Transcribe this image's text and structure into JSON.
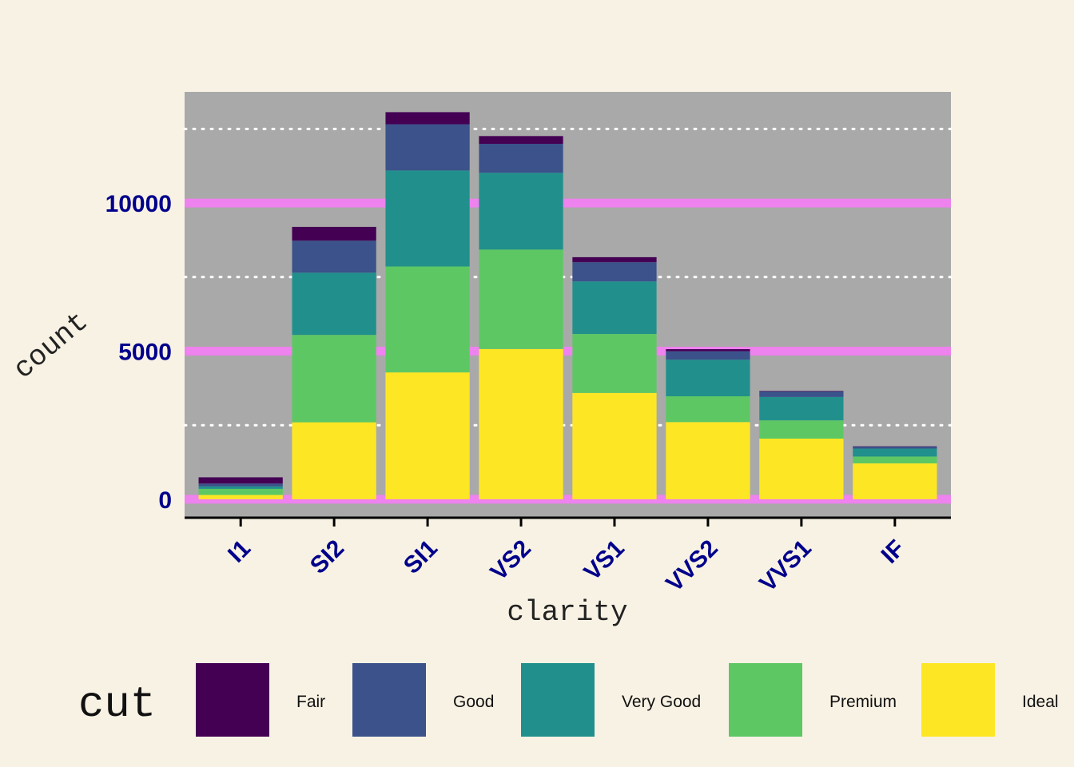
{
  "chart_data": {
    "type": "bar",
    "stacked": true,
    "xlabel": "clarity",
    "ylabel": "count",
    "categories": [
      "I1",
      "SI2",
      "SI1",
      "VS2",
      "VS1",
      "VVS2",
      "VVS1",
      "IF"
    ],
    "ylim": [
      -650,
      13750
    ],
    "yticks": [
      0,
      5000,
      10000
    ],
    "minor_gridlines": [
      2500,
      7500,
      12500
    ],
    "legend": {
      "title": "cut",
      "position": "bottom"
    },
    "series": [
      {
        "name": "Fair",
        "color": "#440154",
        "values": [
          210,
          466,
          408,
          261,
          170,
          69,
          17,
          9
        ]
      },
      {
        "name": "Good",
        "color": "#3b528b",
        "values": [
          96,
          1081,
          1560,
          978,
          648,
          286,
          186,
          71
        ]
      },
      {
        "name": "Very Good",
        "color": "#21908c",
        "values": [
          84,
          2100,
          3240,
          2591,
          1775,
          1235,
          789,
          268
        ]
      },
      {
        "name": "Premium",
        "color": "#5dc863",
        "values": [
          205,
          2949,
          3575,
          3357,
          1989,
          870,
          616,
          230
        ]
      },
      {
        "name": "Ideal",
        "color": "#fde725",
        "values": [
          146,
          2598,
          4282,
          5071,
          3589,
          2606,
          2047,
          1212
        ]
      }
    ]
  },
  "colors": {
    "background": "#f8f2e4",
    "panel": "#a9a9a9",
    "major_grid": "#ee82ee",
    "minor_grid": "#ffffff",
    "tick_text": "#00008b"
  }
}
